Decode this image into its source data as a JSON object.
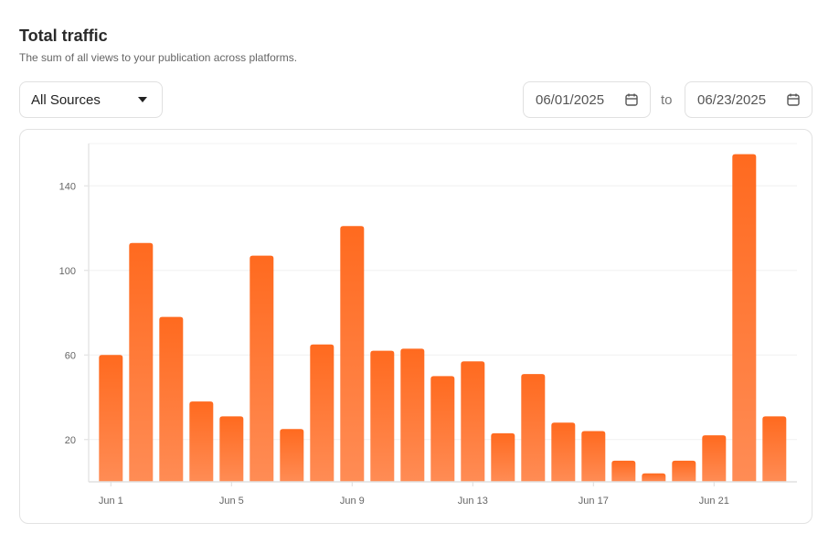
{
  "header": {
    "title": "Total traffic",
    "subtitle": "The sum of all views to your publication across platforms."
  },
  "filters": {
    "source": "All Sources",
    "start_date": "06/01/2025",
    "separator": "to",
    "end_date": "06/23/2025",
    "date_icon": "calendar-icon",
    "select_icon": "caret-down-icon"
  },
  "colors": {
    "bar_top": "#ff6a1f",
    "bar_bottom": "#ff8c55"
  },
  "chart_data": {
    "type": "bar",
    "categories": [
      "Jun 1",
      "Jun 2",
      "Jun 3",
      "Jun 4",
      "Jun 5",
      "Jun 6",
      "Jun 7",
      "Jun 8",
      "Jun 9",
      "Jun 10",
      "Jun 11",
      "Jun 12",
      "Jun 13",
      "Jun 14",
      "Jun 15",
      "Jun 16",
      "Jun 17",
      "Jun 18",
      "Jun 19",
      "Jun 20",
      "Jun 21",
      "Jun 22",
      "Jun 23"
    ],
    "values": [
      60,
      113,
      78,
      38,
      31,
      107,
      25,
      65,
      121,
      62,
      63,
      50,
      57,
      23,
      51,
      28,
      24,
      10,
      4,
      10,
      22,
      155,
      31
    ],
    "x_tick_labels": [
      "Jun 1",
      "Jun 5",
      "Jun 9",
      "Jun 13",
      "Jun 17",
      "Jun 21"
    ],
    "y_ticks": [
      20,
      60,
      100,
      140
    ],
    "ylim": [
      0,
      160
    ],
    "grid": true,
    "title": "",
    "xlabel": "",
    "ylabel": ""
  }
}
